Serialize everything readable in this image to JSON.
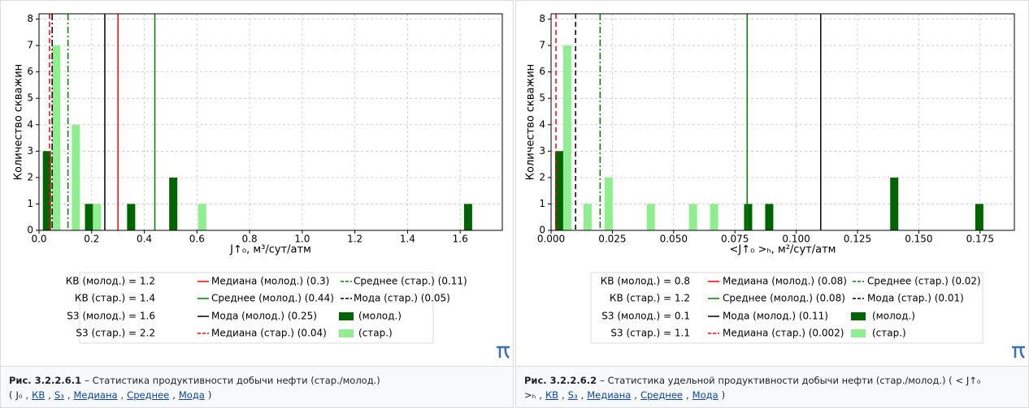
{
  "chart_data": [
    {
      "type": "bar",
      "ylabel": "Количество скважин",
      "xlabel": "J↑₀, м³/сут/атм",
      "xlim": [
        0,
        1.76
      ],
      "ylim": [
        0,
        8.2
      ],
      "xticks": [
        {
          "value": 0,
          "label": "0.0"
        },
        0.2,
        0.4,
        0.6,
        0.8,
        {
          "value": 1,
          "label": "1.0"
        },
        1.2,
        1.4,
        1.6
      ],
      "yticks": [
        0,
        1,
        2,
        3,
        4,
        5,
        6,
        7,
        8
      ],
      "grid": true,
      "series": [
        {
          "name": "(молод.)",
          "color": "#006400",
          "x": [
            0.03,
            0.19,
            0.35,
            0.51,
            1.63
          ],
          "values": [
            3,
            1,
            1,
            2,
            1
          ]
        },
        {
          "name": "(стар.)",
          "color": "#90ee90",
          "x": [
            0.065,
            0.14,
            0.22,
            0.62
          ],
          "values": [
            7,
            4,
            1,
            1
          ]
        }
      ],
      "vlines": [
        {
          "name": "Медиана (молод.) (0.3)",
          "value": 0.3,
          "color": "#ff0000",
          "style": "solid"
        },
        {
          "name": "Среднее (молод.) (0.44)",
          "value": 0.44,
          "color": "#008000",
          "style": "solid"
        },
        {
          "name": "Мода (молод.) (0.25)",
          "value": 0.25,
          "color": "#000000",
          "style": "solid"
        },
        {
          "name": "Медиана (стар.) (0.04)",
          "value": 0.04,
          "color": "#ff0000",
          "style": "dashed"
        },
        {
          "name": "Среднее (стар.) (0.11)",
          "value": 0.11,
          "color": "#008000",
          "style": "dashdot"
        },
        {
          "name": "Мода (стар.) (0.05)",
          "value": 0.05,
          "color": "#000000",
          "style": "dashdot"
        }
      ],
      "stats": [
        "КВ (молод.) = 1.2",
        "КВ (стар.) = 1.4",
        "S3 (молод.) = 1.6",
        "S3 (стар.) = 2.2"
      ]
    },
    {
      "type": "bar",
      "ylabel": "Количество скважин",
      "xlabel": "<J↑₀ >ₕ, м²/сут/атм",
      "xlim": [
        0,
        0.189
      ],
      "ylim": [
        0,
        8.2
      ],
      "xticks": [
        {
          "value": 0,
          "label": "0.000"
        },
        0.025,
        {
          "value": 0.05,
          "label": "0.050"
        },
        0.075,
        {
          "value": 0.1,
          "label": "0.100"
        },
        0.125,
        {
          "value": 0.15,
          "label": "0.150"
        },
        0.175
      ],
      "yticks": [
        0,
        1,
        2,
        3,
        4,
        5,
        6,
        7,
        8
      ],
      "grid": true,
      "series": [
        {
          "name": "(молод.)",
          "color": "#006400",
          "x": [
            0.0033,
            0.0804,
            0.089,
            0.14,
            0.1747
          ],
          "values": [
            3,
            1,
            1,
            2,
            1
          ]
        },
        {
          "name": "(стар.)",
          "color": "#90ee90",
          "x": [
            0.0066,
            0.0149,
            0.0235,
            0.0407,
            0.0579,
            0.0665
          ],
          "values": [
            7,
            1,
            2,
            1,
            1,
            1
          ]
        }
      ],
      "vlines": [
        {
          "name": "Медиана (молод.) (0.08)",
          "value": 0.08,
          "color": "#ff0000",
          "style": "solid"
        },
        {
          "name": "Среднее (молод.) (0.08)",
          "value": 0.08,
          "color": "#008000",
          "style": "solid"
        },
        {
          "name": "Мода (молод.) (0.11)",
          "value": 0.11,
          "color": "#000000",
          "style": "solid"
        },
        {
          "name": "Медиана (стар.) (0.002)",
          "value": 0.002,
          "color": "#ff0000",
          "style": "dashed"
        },
        {
          "name": "Среднее (стар.) (0.02)",
          "value": 0.02,
          "color": "#008000",
          "style": "dashdot"
        },
        {
          "name": "Мода (стар.) (0.01)",
          "value": 0.01,
          "color": "#000000",
          "style": "dashed"
        }
      ],
      "stats": [
        "КВ (молод.) = 0.8",
        "КВ (стар.) = 1.2",
        "S3 (молод.) = 0.1",
        "S3 (стар.) = 1.1"
      ]
    }
  ],
  "captions": [
    {
      "label": "Рис. 3.2.2.6.1",
      "parts": [
        {
          "text": "– Статистика продуктивности добычи нефти (стар./молод.) (",
          "link": false
        },
        {
          "text": "J₀",
          "link": false
        },
        {
          "text": ",",
          "link": false
        },
        {
          "text": "КВ",
          "link": true
        },
        {
          "text": ",",
          "link": false
        },
        {
          "text": "S₃",
          "link": true
        },
        {
          "text": ",",
          "link": false
        },
        {
          "text": "Медиана",
          "link": true
        },
        {
          "text": ",",
          "link": false
        },
        {
          "text": "Среднее",
          "link": true
        },
        {
          "text": ",",
          "link": false
        },
        {
          "text": "Мода",
          "link": true
        },
        {
          "text": ")",
          "link": false
        }
      ]
    },
    {
      "label": "Рис. 3.2.2.6.2",
      "parts": [
        {
          "text": "– Статистика удельной продуктивности добычи нефти (стар./молод.) (",
          "link": false
        },
        {
          "text": "< J↑₀ >ₕ",
          "link": false
        },
        {
          "text": ",",
          "link": false
        },
        {
          "text": "КВ",
          "link": true
        },
        {
          "text": ",",
          "link": false
        },
        {
          "text": "S₃",
          "link": true
        },
        {
          "text": ",",
          "link": false
        },
        {
          "text": "Медиана",
          "link": true
        },
        {
          "text": ",",
          "link": false
        },
        {
          "text": "Среднее",
          "link": true
        },
        {
          "text": ",",
          "link": false
        },
        {
          "text": "Мода",
          "link": true
        },
        {
          "text": ")",
          "link": false
        }
      ]
    }
  ]
}
